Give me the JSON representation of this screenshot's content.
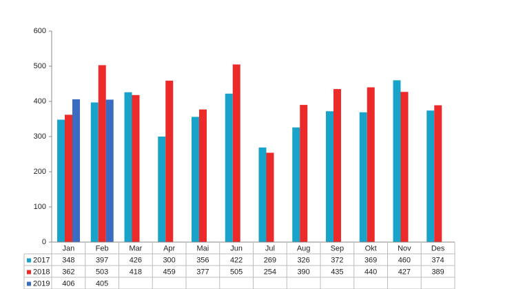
{
  "chart_data": {
    "type": "bar",
    "categories": [
      "Jan",
      "Feb",
      "Mar",
      "Apr",
      "Mai",
      "Jun",
      "Jul",
      "Aug",
      "Sep",
      "Okt",
      "Nov",
      "Des"
    ],
    "series": [
      {
        "name": "2017",
        "color": "#1aa3c9",
        "values": [
          348,
          397,
          426,
          300,
          356,
          422,
          269,
          326,
          372,
          369,
          460,
          374
        ]
      },
      {
        "name": "2018",
        "color": "#ec2a2a",
        "values": [
          362,
          503,
          418,
          459,
          377,
          505,
          254,
          390,
          435,
          440,
          427,
          389
        ]
      },
      {
        "name": "2019",
        "color": "#3a6cc2",
        "values": [
          406,
          405,
          null,
          null,
          null,
          null,
          null,
          null,
          null,
          null,
          null,
          null
        ]
      }
    ],
    "ylim": [
      0,
      600
    ],
    "yticks": [
      0,
      100,
      200,
      300,
      400,
      500,
      600
    ],
    "grid": false
  }
}
